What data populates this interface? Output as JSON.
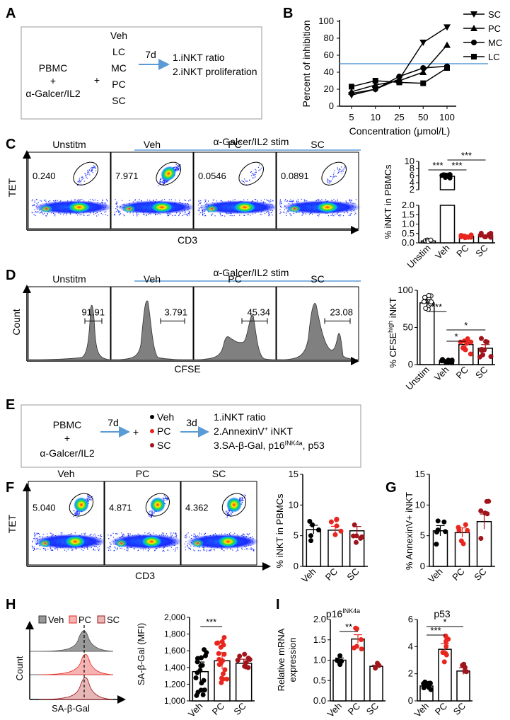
{
  "panels": {
    "A": "A",
    "B": "B",
    "C": "C",
    "D": "D",
    "E": "E",
    "F": "F",
    "G": "G",
    "H": "H",
    "I": "I"
  },
  "panelA": {
    "left_line1": "PBMC",
    "left_line2": "+",
    "left_line3": "α-Galcer/IL2",
    "plus": "+",
    "treatments": [
      "Veh",
      "LC",
      "MC",
      "PC",
      "SC"
    ],
    "duration": "7d",
    "outcome1": "1.iNKT ratio",
    "outcome2": "2.iNKT proliferation"
  },
  "chart_data": [
    {
      "id": "B",
      "type": "line",
      "title": "",
      "xlabel": "Concentration (μmol/L)",
      "ylabel": "Percent of inhibition",
      "categories": [
        "5",
        "10",
        "25",
        "50",
        "100"
      ],
      "ylim": [
        0,
        100
      ],
      "yticks": [
        "0",
        "20",
        "40",
        "60",
        "80",
        "100"
      ],
      "reference_line": 50,
      "series": [
        {
          "name": "SC",
          "marker": "triangle-down",
          "values": [
            13,
            20,
            32,
            75,
            93
          ]
        },
        {
          "name": "PC",
          "marker": "triangle-up",
          "values": [
            17,
            25,
            30,
            40,
            72
          ]
        },
        {
          "name": "MC",
          "marker": "circle",
          "values": [
            15,
            20,
            35,
            45,
            47
          ]
        },
        {
          "name": "LC",
          "marker": "square",
          "values": [
            23,
            30,
            28,
            27,
            45
          ]
        }
      ]
    },
    {
      "id": "C-bar",
      "type": "bar",
      "ylabel": "% iNKT in PBMCs",
      "categories": [
        "Unstim",
        "Veh",
        "PC",
        "SC"
      ],
      "values": [
        0.1,
        5.8,
        0.35,
        0.4
      ],
      "upper_ticks": [
        "10",
        "8",
        "6",
        "4",
        "2"
      ],
      "lower_ticks": [
        "2.0",
        "1.5",
        "1.0",
        "0.5",
        "0.0"
      ],
      "significance": [
        "***",
        "***",
        "***"
      ]
    },
    {
      "id": "D-bar",
      "type": "bar",
      "ylabel": "% CFSE high iNKT",
      "categories": [
        "Unstim",
        "Veh",
        "PC",
        "SC"
      ],
      "values": [
        83,
        5,
        27,
        22
      ],
      "ylim": [
        0,
        100
      ],
      "yticks": [
        "0",
        "50",
        "100"
      ],
      "significance": [
        "***",
        "*",
        "*"
      ]
    },
    {
      "id": "F-bar",
      "type": "bar",
      "ylabel": "% iNKT in PBMCs",
      "categories": [
        "Veh",
        "PC",
        "SC"
      ],
      "values": [
        6,
        5.9,
        5.8
      ],
      "ylim": [
        0,
        15
      ],
      "yticks": [
        "0",
        "5",
        "10",
        "15"
      ]
    },
    {
      "id": "G-bar",
      "type": "bar",
      "ylabel": "% AnnexinV+ iNKT",
      "categories": [
        "Veh",
        "PC",
        "SC"
      ],
      "values": [
        5.8,
        5.5,
        7.3
      ],
      "ylim": [
        0,
        15
      ],
      "yticks": [
        "0",
        "5",
        "10",
        "15"
      ]
    },
    {
      "id": "H-bar",
      "type": "bar",
      "ylabel": "SA-β-Gal (MFI)",
      "categories": [
        "Veh",
        "PC",
        "SC"
      ],
      "values": [
        1350,
        1480,
        1450
      ],
      "ylim": [
        1000,
        2000
      ],
      "yticks": [
        "1,000",
        "1,200",
        "1,400",
        "1,600",
        "1,800",
        "2,000"
      ],
      "significance": [
        "***"
      ]
    },
    {
      "id": "I-p16",
      "type": "bar",
      "title": "p16INK4a",
      "ylabel": "Relative mRNA expression",
      "categories": [
        "Veh",
        "PC",
        "SC"
      ],
      "values": [
        1.0,
        1.52,
        0.85
      ],
      "ylim": [
        0,
        2
      ],
      "yticks": [
        "0.0",
        "0.5",
        "1.0",
        "1.5",
        "2.0"
      ],
      "significance": [
        "**"
      ]
    },
    {
      "id": "I-p53",
      "type": "bar",
      "title": "p53",
      "categories": [
        "Veh",
        "PC",
        "SC"
      ],
      "values": [
        1.1,
        3.8,
        2.2
      ],
      "ylim": [
        0,
        6
      ],
      "yticks": [
        "0",
        "2",
        "4",
        "6"
      ],
      "significance": [
        "***",
        "*"
      ]
    }
  ],
  "panelC": {
    "header": "α-Galcer/IL2 stim",
    "titles": [
      "Unstitm",
      "Veh",
      "PC",
      "SC"
    ],
    "gates": [
      "0.240",
      "7.971",
      "0.0546",
      "0.0891"
    ],
    "xaxis": "CD3",
    "yaxis": "TET"
  },
  "panelD": {
    "header": "α-Galcer/IL2 stim",
    "titles": [
      "Unstitm",
      "Veh",
      "PC",
      "SC"
    ],
    "gates": [
      "91.91",
      "3.791",
      "45.34",
      "23.08"
    ],
    "xaxis": "CFSE",
    "yaxis": "Count",
    "bar_ylabel_main": "% CFSE",
    "bar_ylabel_sup": "high",
    "bar_ylabel_end": " iNKT"
  },
  "panelE": {
    "left_line1": "PBMC",
    "left_line2": "+",
    "left_line3": "α-Galcer/IL2",
    "d1": "7d",
    "plus": "+",
    "treatments": [
      "Veh",
      "PC",
      "SC"
    ],
    "d2": "3d",
    "out1": "1.iNKT ratio",
    "out2a": "2.AnnexinV",
    "out2sup": "+",
    "out2b": " iNKT",
    "out3a": "3.SA-β-Gal, p16",
    "out3sup": "INK4a",
    "out3b": ", p53"
  },
  "panelF": {
    "titles": [
      "Veh",
      "PC",
      "SC"
    ],
    "gates": [
      "5.040",
      "4.871",
      "4.362"
    ],
    "xaxis": "CD3",
    "yaxis": "TET"
  },
  "panelH": {
    "legend": [
      "Veh",
      "PC",
      "SC"
    ],
    "xaxis": "SA-β-Gal",
    "yaxis": "Count"
  },
  "panelI": {
    "p16_main": "p16",
    "p16_sup": "INK4a",
    "p53": "p53",
    "ylabel1": "Relative mRNA",
    "ylabel2": "expression"
  },
  "colors": {
    "blue_line": "#5b9bd5",
    "red": "#e8261f",
    "dark_red": "#a0141c",
    "gray_fill": "#808080"
  }
}
